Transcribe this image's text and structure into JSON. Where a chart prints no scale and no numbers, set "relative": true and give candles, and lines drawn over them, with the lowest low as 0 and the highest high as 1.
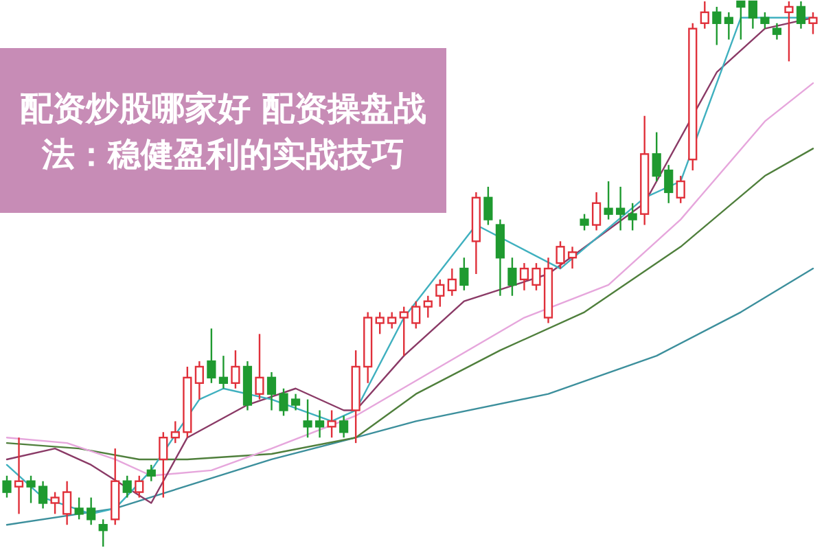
{
  "chart_data": {
    "type": "candlestick",
    "title": "配资炒股哪家好 配资操盘战法：稳健盈利的实战技巧",
    "relative": true,
    "categories": [
      null,
      null,
      null,
      null,
      null,
      null,
      null,
      null,
      null,
      null,
      null,
      null,
      null,
      null,
      null,
      null,
      null,
      null,
      null,
      null,
      null,
      null,
      null,
      null,
      null,
      null,
      null,
      null,
      null,
      null,
      null,
      null,
      null,
      null,
      null,
      null,
      null,
      null,
      null,
      null,
      null,
      null,
      null,
      null,
      null,
      null,
      null,
      null,
      null,
      null,
      null,
      null,
      null,
      null,
      null,
      null,
      null,
      null,
      null,
      null,
      null,
      null,
      null,
      null,
      null,
      null,
      null,
      null
    ],
    "ohlc": [
      [
        0.12,
        0.13,
        0.09,
        0.1
      ],
      [
        0.11,
        0.2,
        0.06,
        0.12
      ],
      [
        0.12,
        0.13,
        0.08,
        0.11
      ],
      [
        0.11,
        0.12,
        0.07,
        0.08
      ],
      [
        0.08,
        0.1,
        0.06,
        0.09
      ],
      [
        0.06,
        0.12,
        0.04,
        0.1
      ],
      [
        0.07,
        0.09,
        0.05,
        0.06
      ],
      [
        0.07,
        0.09,
        0.04,
        0.05
      ],
      [
        0.04,
        0.05,
        0.0,
        0.03
      ],
      [
        0.05,
        0.18,
        0.04,
        0.12
      ],
      [
        0.12,
        0.13,
        0.09,
        0.1
      ],
      [
        0.1,
        0.13,
        0.09,
        0.12
      ],
      [
        0.14,
        0.15,
        0.12,
        0.13
      ],
      [
        0.16,
        0.21,
        0.09,
        0.2
      ],
      [
        0.2,
        0.23,
        0.19,
        0.21
      ],
      [
        0.21,
        0.33,
        0.2,
        0.31
      ],
      [
        0.3,
        0.34,
        0.27,
        0.33
      ],
      [
        0.34,
        0.4,
        0.3,
        0.31
      ],
      [
        0.31,
        0.35,
        0.29,
        0.3
      ],
      [
        0.3,
        0.36,
        0.29,
        0.33
      ],
      [
        0.33,
        0.34,
        0.25,
        0.26
      ],
      [
        0.28,
        0.39,
        0.27,
        0.31
      ],
      [
        0.31,
        0.32,
        0.25,
        0.28
      ],
      [
        0.28,
        0.29,
        0.24,
        0.25
      ],
      [
        0.27,
        0.28,
        0.25,
        0.26
      ],
      [
        0.23,
        0.27,
        0.2,
        0.22
      ],
      [
        0.23,
        0.25,
        0.2,
        0.22
      ],
      [
        0.22,
        0.25,
        0.2,
        0.23
      ],
      [
        0.23,
        0.24,
        0.2,
        0.21
      ],
      [
        0.25,
        0.36,
        0.19,
        0.33
      ],
      [
        0.33,
        0.43,
        0.3,
        0.42
      ],
      [
        0.41,
        0.43,
        0.39,
        0.42
      ],
      [
        0.41,
        0.43,
        0.4,
        0.42
      ],
      [
        0.42,
        0.44,
        0.35,
        0.43
      ],
      [
        0.41,
        0.45,
        0.4,
        0.44
      ],
      [
        0.44,
        0.46,
        0.42,
        0.45
      ],
      [
        0.46,
        0.49,
        0.44,
        0.48
      ],
      [
        0.47,
        0.51,
        0.46,
        0.49
      ],
      [
        0.51,
        0.53,
        0.47,
        0.48
      ],
      [
        0.56,
        0.65,
        0.5,
        0.64
      ],
      [
        0.64,
        0.66,
        0.59,
        0.6
      ],
      [
        0.59,
        0.6,
        0.46,
        0.53
      ],
      [
        0.51,
        0.53,
        0.46,
        0.48
      ],
      [
        0.49,
        0.52,
        0.47,
        0.51
      ],
      [
        0.48,
        0.52,
        0.47,
        0.51
      ],
      [
        0.42,
        0.53,
        0.41,
        0.51
      ],
      [
        0.52,
        0.56,
        0.51,
        0.55
      ],
      [
        0.53,
        0.55,
        0.51,
        0.54
      ],
      [
        0.6,
        0.61,
        0.58,
        0.59
      ],
      [
        0.59,
        0.65,
        0.58,
        0.63
      ],
      [
        0.62,
        0.67,
        0.6,
        0.61
      ],
      [
        0.62,
        0.66,
        0.58,
        0.61
      ],
      [
        0.61,
        0.63,
        0.58,
        0.6
      ],
      [
        0.61,
        0.79,
        0.59,
        0.72
      ],
      [
        0.72,
        0.76,
        0.67,
        0.68
      ],
      [
        0.69,
        0.7,
        0.63,
        0.65
      ],
      [
        0.64,
        0.68,
        0.63,
        0.67
      ],
      [
        0.71,
        0.96,
        0.69,
        0.95
      ],
      [
        0.96,
        1.0,
        0.95,
        0.98
      ],
      [
        0.98,
        0.99,
        0.92,
        0.96
      ],
      [
        0.97,
        0.98,
        0.93,
        0.96
      ],
      [
        1.0,
        1.0,
        0.93,
        0.99
      ],
      [
        1.0,
        1.0,
        0.95,
        0.97
      ],
      [
        0.97,
        0.98,
        0.95,
        0.96
      ],
      [
        0.95,
        0.96,
        0.93,
        0.94
      ],
      [
        0.98,
        1.0,
        0.89,
        0.99
      ],
      [
        0.99,
        1.0,
        0.95,
        0.96
      ],
      [
        0.96,
        0.98,
        0.94,
        0.97
      ]
    ],
    "colors": [
      "#1f9a30",
      "#e0303a",
      "#1f9a30",
      "#1f9a30",
      "#e0303a",
      "#e0303a",
      "#1f9a30",
      "#1f9a30",
      "#1f9a30",
      "#e0303a",
      "#1f9a30",
      "#e0303a",
      "#1f9a30",
      "#e0303a",
      "#e0303a",
      "#e0303a",
      "#e0303a",
      "#1f9a30",
      "#1f9a30",
      "#e0303a",
      "#1f9a30",
      "#e0303a",
      "#1f9a30",
      "#1f9a30",
      "#1f9a30",
      "#1f9a30",
      "#1f9a30",
      "#e0303a",
      "#1f9a30",
      "#e0303a",
      "#e0303a",
      "#e0303a",
      "#e0303a",
      "#e0303a",
      "#e0303a",
      "#e0303a",
      "#e0303a",
      "#e0303a",
      "#1f9a30",
      "#e0303a",
      "#1f9a30",
      "#1f9a30",
      "#1f9a30",
      "#e0303a",
      "#e0303a",
      "#e0303a",
      "#e0303a",
      "#e0303a",
      "#1f9a30",
      "#e0303a",
      "#1f9a30",
      "#1f9a30",
      "#1f9a30",
      "#e0303a",
      "#1f9a30",
      "#1f9a30",
      "#e0303a",
      "#e0303a",
      "#e0303a",
      "#1f9a30",
      "#1f9a30",
      "#1f9a30",
      "#1f9a30",
      "#1f9a30",
      "#1f9a30",
      "#e0303a",
      "#1f9a30",
      "#e0303a"
    ],
    "series": [
      {
        "type": "line",
        "color": "#3c8f9c",
        "values": [
          0.04,
          null,
          null,
          null,
          null,
          null,
          null,
          null,
          null,
          0.07,
          null,
          null,
          null,
          null,
          null,
          null,
          null,
          null,
          null,
          null,
          null,
          null,
          0.16,
          null,
          null,
          null,
          null,
          null,
          null,
          0.2,
          null,
          null,
          null,
          null,
          0.23,
          null,
          null,
          null,
          null,
          null,
          null,
          null,
          null,
          null,
          null,
          0.28,
          null,
          null,
          null,
          null,
          null,
          null,
          null,
          null,
          0.35,
          null,
          null,
          null,
          null,
          null,
          null,
          0.43,
          null,
          null,
          null,
          null,
          null,
          0.51
        ]
      },
      {
        "type": "line",
        "color": "#4f7f3c",
        "values": [
          0.19,
          null,
          null,
          null,
          null,
          null,
          0.18,
          null,
          null,
          null,
          null,
          0.16,
          null,
          null,
          null,
          0.16,
          null,
          null,
          null,
          null,
          null,
          null,
          0.17,
          null,
          null,
          null,
          null,
          null,
          null,
          0.2,
          null,
          null,
          null,
          null,
          0.28,
          null,
          null,
          null,
          null,
          null,
          null,
          0.36,
          null,
          null,
          null,
          null,
          null,
          null,
          0.43,
          null,
          null,
          null,
          null,
          null,
          null,
          null,
          0.55,
          null,
          null,
          null,
          null,
          null,
          null,
          0.68,
          null,
          null,
          null,
          0.73
        ]
      },
      {
        "type": "line",
        "color": "#e6a6dc",
        "values": [
          0.2,
          null,
          null,
          null,
          null,
          0.19,
          null,
          null,
          null,
          0.16,
          null,
          null,
          0.13,
          null,
          null,
          null,
          null,
          0.14,
          null,
          null,
          null,
          null,
          0.18,
          null,
          null,
          null,
          null,
          null,
          null,
          0.24,
          null,
          null,
          null,
          null,
          null,
          null,
          0.33,
          null,
          null,
          null,
          null,
          null,
          null,
          0.42,
          null,
          null,
          null,
          null,
          null,
          null,
          0.48,
          null,
          null,
          null,
          null,
          null,
          0.6,
          null,
          null,
          null,
          null,
          null,
          null,
          0.78,
          null,
          null,
          null,
          0.85
        ]
      },
      {
        "type": "line",
        "color": "#8a3a66",
        "values": [
          0.16,
          null,
          null,
          null,
          0.18,
          null,
          null,
          0.15,
          null,
          null,
          null,
          null,
          0.08,
          null,
          null,
          0.2,
          null,
          null,
          null,
          null,
          0.26,
          null,
          null,
          null,
          0.29,
          null,
          null,
          null,
          0.25,
          0.25,
          null,
          null,
          null,
          0.35,
          null,
          null,
          null,
          null,
          0.45,
          null,
          null,
          null,
          null,
          null,
          null,
          0.5,
          null,
          null,
          null,
          null,
          null,
          null,
          null,
          0.63,
          null,
          null,
          null,
          null,
          null,
          0.87,
          null,
          null,
          null,
          0.95,
          null,
          null,
          null,
          0.97
        ]
      },
      {
        "type": "line",
        "color": "#3fb0bf",
        "values": [
          0.15,
          null,
          null,
          0.09,
          null,
          null,
          null,
          0.06,
          null,
          0.07,
          null,
          null,
          0.14,
          null,
          null,
          null,
          0.27,
          null,
          0.29,
          null,
          null,
          null,
          0.27,
          null,
          null,
          null,
          null,
          0.23,
          null,
          0.25,
          null,
          null,
          null,
          0.42,
          null,
          null,
          null,
          null,
          null,
          0.59,
          null,
          null,
          null,
          null,
          null,
          null,
          0.51,
          null,
          null,
          null,
          null,
          null,
          null,
          0.64,
          null,
          null,
          0.67,
          null,
          null,
          null,
          null,
          0.97,
          null,
          null,
          null,
          null,
          null,
          0.97
        ]
      }
    ]
  }
}
